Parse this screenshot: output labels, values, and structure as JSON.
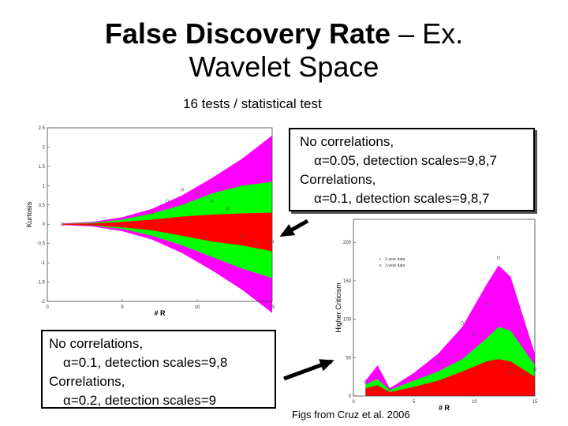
{
  "slide": {
    "title_bold": "False Discovery Rate",
    "title_rest": " – Ex.",
    "title_line2": "Wavelet Space",
    "subtitle": "16 tests / statistical test",
    "box1": {
      "line1": "No correlations,",
      "line2": "α=0.05, detection scales=9,8,7",
      "line3": "Correlations,",
      "line4": "α=0.1, detection scales=9,8,7"
    },
    "box2": {
      "line1": "No correlations,",
      "line2": "α=0.1, detection scales=9,8",
      "line3": "Correlations,",
      "line4": "α=0.2, detection scales=9"
    },
    "credit": "Figs from Cruz et al. 2006"
  },
  "colors": {
    "magenta": "#ff00ff",
    "green": "#00ff00",
    "red": "#ff0000",
    "arrow": "#000000"
  },
  "chart_data": [
    {
      "type": "area",
      "xlabel": "# R",
      "ylabel": "Kurtosis",
      "xlim": [
        0,
        15
      ],
      "ylim": [
        -2,
        2.5
      ],
      "xticks": [
        "0",
        "5",
        "10",
        "15"
      ],
      "yticks": [
        "-2",
        "-1.5",
        "-1",
        "-0.5",
        "0",
        "0.5",
        "1",
        "1.5",
        "2",
        "2.5"
      ],
      "x": [
        1,
        3,
        5,
        7,
        9,
        11,
        13,
        15
      ],
      "bands": [
        {
          "color": "magenta",
          "upper": [
            0.02,
            0.06,
            0.18,
            0.4,
            0.75,
            1.2,
            1.7,
            2.3
          ],
          "lower": [
            -0.02,
            -0.06,
            -0.18,
            -0.4,
            -0.75,
            -1.2,
            -1.7,
            -2.3
          ]
        },
        {
          "color": "green",
          "upper": [
            0.01,
            0.04,
            0.12,
            0.28,
            0.5,
            0.8,
            1.0,
            1.1
          ],
          "lower": [
            -0.01,
            -0.04,
            -0.12,
            -0.3,
            -0.55,
            -0.85,
            -1.15,
            -1.4
          ]
        },
        {
          "color": "red",
          "upper": [
            0.01,
            0.02,
            0.06,
            0.12,
            0.2,
            0.25,
            0.28,
            0.3
          ],
          "lower": [
            -0.01,
            -0.03,
            -0.08,
            -0.16,
            -0.3,
            -0.45,
            -0.55,
            -0.7
          ]
        }
      ],
      "points": [
        {
          "x": 1,
          "y": 0.0
        },
        {
          "x": 3,
          "y": 0.0
        },
        {
          "x": 5,
          "y": -0.05
        },
        {
          "x": 7,
          "y": 0.3
        },
        {
          "x": 8,
          "y": 0.6
        },
        {
          "x": 9,
          "y": 0.9
        },
        {
          "x": 10,
          "y": 0.8
        },
        {
          "x": 11,
          "y": 0.6
        },
        {
          "x": 12,
          "y": 0.4
        },
        {
          "x": 13,
          "y": -0.3
        },
        {
          "x": 14,
          "y": -0.5
        },
        {
          "x": 15,
          "y": -0.45
        }
      ]
    },
    {
      "type": "area",
      "xlabel": "# R",
      "ylabel": "Higher Criticism",
      "xlim": [
        0,
        15
      ],
      "ylim": [
        0,
        230
      ],
      "xticks": [
        "0",
        "5",
        "10",
        "15"
      ],
      "yticks": [
        "0",
        "50",
        "100",
        "150",
        "200"
      ],
      "legend": [
        "1-year data",
        "3-year data"
      ],
      "x": [
        1,
        2,
        3,
        5,
        7,
        9,
        11,
        12,
        13,
        15
      ],
      "bands": [
        {
          "color": "magenta",
          "upper": [
            20,
            40,
            10,
            30,
            55,
            90,
            145,
            170,
            155,
            55
          ]
        },
        {
          "color": "green",
          "upper": [
            15,
            22,
            8,
            20,
            32,
            48,
            75,
            90,
            85,
            40
          ]
        },
        {
          "color": "red",
          "upper": [
            10,
            14,
            5,
            12,
            20,
            32,
            45,
            48,
            45,
            25
          ]
        }
      ],
      "points": [
        {
          "x": 1,
          "y": 18
        },
        {
          "x": 2,
          "y": 12
        },
        {
          "x": 3,
          "y": 8
        },
        {
          "x": 5,
          "y": 10
        },
        {
          "x": 7,
          "y": 45
        },
        {
          "x": 9,
          "y": 95
        },
        {
          "x": 10,
          "y": 80
        },
        {
          "x": 11,
          "y": 120
        },
        {
          "x": 12,
          "y": 180
        },
        {
          "x": 13,
          "y": 30
        },
        {
          "x": 14,
          "y": 28
        },
        {
          "x": 15,
          "y": 35
        }
      ]
    }
  ]
}
